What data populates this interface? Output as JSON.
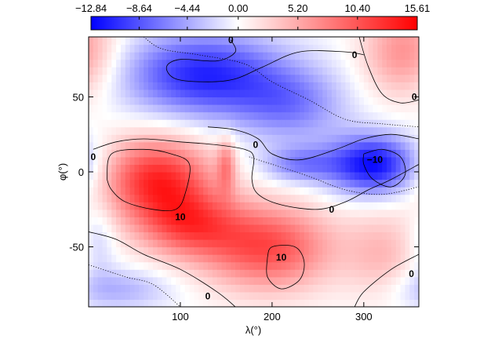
{
  "chart_data": {
    "type": "heatmap",
    "title": "",
    "xlabel": "λ(°)",
    "ylabel": "φ(°)",
    "xlim": [
      0,
      360
    ],
    "ylim": [
      -90,
      90
    ],
    "x_ticks": [
      100,
      200,
      300
    ],
    "y_ticks": [
      -50,
      0,
      50
    ],
    "colorbar": {
      "min": -12.84,
      "max": 15.61,
      "ticks": [
        -12.84,
        -8.64,
        -4.44,
        0.0,
        5.2,
        10.4,
        15.61
      ],
      "tick_labels": [
        "−12.84",
        "−8.64",
        "−4.44",
        "0.00",
        "5.20",
        "10.40",
        "15.61"
      ],
      "colors": {
        "negative": "#0000ff",
        "zero": "#ffffff",
        "positive": "#ff0000"
      }
    },
    "blobs": [
      {
        "name": "red-west-equator",
        "lon": 75,
        "lat": -5,
        "slon": 60,
        "slat": 28,
        "value": 13
      },
      {
        "name": "red-south-center",
        "lon": 195,
        "lat": -50,
        "slon": 70,
        "slat": 28,
        "value": 11
      },
      {
        "name": "red-west-south-band",
        "lon": 110,
        "lat": -35,
        "slon": 55,
        "slat": 22,
        "value": 9
      },
      {
        "name": "red-ridge-150",
        "lon": 150,
        "lat": 5,
        "slon": 10,
        "slat": 18,
        "value": 6
      },
      {
        "name": "red-northeast",
        "lon": 345,
        "lat": 80,
        "slon": 45,
        "slat": 30,
        "value": 7
      },
      {
        "name": "red-southeast",
        "lon": 320,
        "lat": -55,
        "slon": 40,
        "slat": 30,
        "value": 4
      },
      {
        "name": "blue-north",
        "lon": 125,
        "lat": 65,
        "slon": 85,
        "slat": 28,
        "value": -11
      },
      {
        "name": "blue-north-band",
        "lon": 220,
        "lat": 45,
        "slon": 60,
        "slat": 25,
        "value": -6
      },
      {
        "name": "blue-east-equator",
        "lon": 310,
        "lat": 5,
        "slon": 50,
        "slat": 20,
        "value": -12.5
      },
      {
        "name": "blue-channel",
        "lon": 230,
        "lat": 5,
        "slon": 40,
        "slat": 12,
        "value": -6
      },
      {
        "name": "blue-southwest",
        "lon": 30,
        "lat": -78,
        "slon": 60,
        "slat": 14,
        "value": -4
      },
      {
        "name": "blue-southwest-corner",
        "lon": 10,
        "lat": -45,
        "slon": 20,
        "slat": 25,
        "value": -3
      }
    ],
    "contour_labels": [
      {
        "text": "0",
        "lon": 155,
        "lat": 88
      },
      {
        "text": "0",
        "lon": 290,
        "lat": 78
      },
      {
        "text": "0",
        "lon": 355,
        "lat": 50
      },
      {
        "text": "0",
        "lon": 182,
        "lat": 18
      },
      {
        "text": "0",
        "lon": 5,
        "lat": 10
      },
      {
        "text": "−10",
        "lon": 312,
        "lat": 8
      },
      {
        "text": "10",
        "lon": 100,
        "lat": -30
      },
      {
        "text": "0",
        "lon": 265,
        "lat": -25
      },
      {
        "text": "10",
        "lon": 210,
        "lat": -57
      },
      {
        "text": "0",
        "lon": 352,
        "lat": -68
      },
      {
        "text": "0",
        "lon": 130,
        "lat": -83
      }
    ],
    "contours": [
      {
        "name": "contour-zero-north",
        "style": "solid",
        "lonlat": [
          [
            155,
            88
          ],
          [
            160,
            80
          ],
          [
            140,
            74
          ],
          [
            100,
            75
          ],
          [
            85,
            70
          ],
          [
            95,
            62
          ],
          [
            130,
            60
          ],
          [
            160,
            62
          ],
          [
            190,
            70
          ],
          [
            230,
            80
          ],
          [
            280,
            80
          ],
          [
            300,
            78
          ]
        ]
      },
      {
        "name": "contour-zero-northeast",
        "style": "solid",
        "lonlat": [
          [
            295,
            90
          ],
          [
            305,
            70
          ],
          [
            320,
            52
          ],
          [
            340,
            46
          ],
          [
            360,
            48
          ]
        ]
      },
      {
        "name": "contour-zero-west",
        "style": "solid",
        "lonlat": [
          [
            5,
            15
          ],
          [
            30,
            20
          ],
          [
            60,
            22
          ],
          [
            100,
            20
          ],
          [
            140,
            18
          ],
          [
            170,
            15
          ],
          [
            180,
            10
          ],
          [
            178,
            -5
          ],
          [
            185,
            -15
          ],
          [
            210,
            -22
          ],
          [
            250,
            -25
          ],
          [
            280,
            -20
          ],
          [
            305,
            -12
          ],
          [
            330,
            -5
          ],
          [
            360,
            5
          ]
        ]
      },
      {
        "name": "contour-zero-mid",
        "style": "solid",
        "lonlat": [
          [
            130,
            30
          ],
          [
            160,
            28
          ],
          [
            185,
            22
          ],
          [
            200,
            12
          ],
          [
            230,
            8
          ],
          [
            270,
            15
          ],
          [
            300,
            22
          ],
          [
            330,
            25
          ],
          [
            360,
            22
          ]
        ]
      },
      {
        "name": "contour-ten-west",
        "style": "solid",
        "lonlat": [
          [
            20,
            -5
          ],
          [
            25,
            12
          ],
          [
            60,
            15
          ],
          [
            90,
            12
          ],
          [
            110,
            5
          ],
          [
            105,
            -15
          ],
          [
            95,
            -25
          ],
          [
            70,
            -25
          ],
          [
            40,
            -20
          ],
          [
            25,
            -12
          ],
          [
            20,
            -5
          ]
        ]
      },
      {
        "name": "contour-ten-south",
        "style": "solid",
        "lonlat": [
          [
            195,
            -57
          ],
          [
            200,
            -50
          ],
          [
            225,
            -50
          ],
          [
            235,
            -60
          ],
          [
            230,
            -72
          ],
          [
            210,
            -78
          ],
          [
            195,
            -70
          ],
          [
            195,
            -57
          ]
        ]
      },
      {
        "name": "contour-neg-ten-east",
        "style": "solid",
        "lonlat": [
          [
            300,
            12
          ],
          [
            320,
            15
          ],
          [
            340,
            10
          ],
          [
            345,
            -2
          ],
          [
            330,
            -10
          ],
          [
            310,
            -5
          ],
          [
            300,
            5
          ],
          [
            300,
            12
          ]
        ]
      },
      {
        "name": "contour-zero-south",
        "style": "solid",
        "lonlat": [
          [
            0,
            -40
          ],
          [
            30,
            -45
          ],
          [
            60,
            -55
          ],
          [
            100,
            -65
          ],
          [
            140,
            -80
          ],
          [
            160,
            -90
          ]
        ]
      },
      {
        "name": "contour-zero-southeast",
        "style": "solid",
        "lonlat": [
          [
            290,
            -90
          ],
          [
            300,
            -80
          ],
          [
            330,
            -65
          ],
          [
            360,
            -55
          ]
        ]
      },
      {
        "name": "contour-dotted-north",
        "style": "dotted",
        "lonlat": [
          [
            60,
            90
          ],
          [
            80,
            82
          ],
          [
            120,
            78
          ],
          [
            170,
            72
          ],
          [
            200,
            60
          ],
          [
            240,
            48
          ],
          [
            280,
            35
          ],
          [
            320,
            32
          ],
          [
            360,
            30
          ]
        ]
      },
      {
        "name": "contour-dotted-equator",
        "style": "dotted",
        "lonlat": [
          [
            175,
            10
          ],
          [
            200,
            5
          ],
          [
            240,
            -3
          ],
          [
            280,
            -12
          ],
          [
            320,
            -15
          ],
          [
            360,
            -10
          ]
        ]
      },
      {
        "name": "contour-dotted-south",
        "style": "dotted",
        "lonlat": [
          [
            0,
            -62
          ],
          [
            40,
            -70
          ],
          [
            70,
            -75
          ],
          [
            100,
            -90
          ]
        ]
      }
    ]
  }
}
